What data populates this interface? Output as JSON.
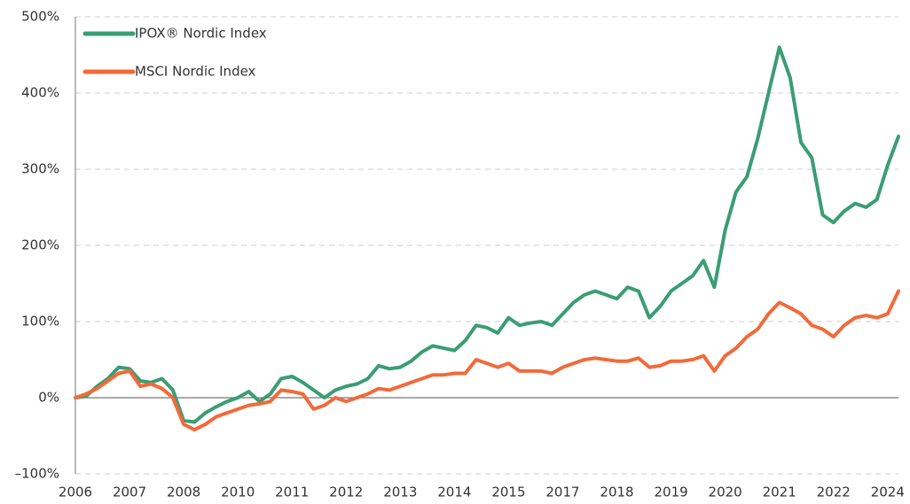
{
  "chart_data": {
    "type": "line",
    "categories": [
      "2006",
      null,
      null,
      null,
      null,
      "2007",
      null,
      null,
      null,
      null,
      "2008",
      null,
      null,
      null,
      null,
      "2010",
      null,
      null,
      null,
      null,
      "2011",
      null,
      null,
      null,
      null,
      "2012",
      null,
      null,
      null,
      null,
      "2013",
      null,
      null,
      null,
      null,
      "2014",
      null,
      null,
      null,
      null,
      "2015",
      null,
      null,
      null,
      null,
      "2017",
      null,
      null,
      null,
      null,
      "2018",
      null,
      null,
      null,
      null,
      "2019",
      null,
      null,
      null,
      null,
      "2020",
      null,
      null,
      null,
      null,
      "2021",
      null,
      null,
      null,
      null,
      "2022",
      null,
      null,
      null,
      null,
      "2024",
      null
    ],
    "series": [
      {
        "name": "IPOX® Nordic Index",
        "color": "#3a9d74",
        "values": [
          0,
          2,
          15,
          25,
          40,
          38,
          22,
          20,
          25,
          10,
          -30,
          -32,
          -20,
          -12,
          -5,
          0,
          8,
          -5,
          5,
          25,
          28,
          20,
          10,
          0,
          10,
          15,
          18,
          25,
          42,
          38,
          40,
          48,
          60,
          68,
          65,
          62,
          75,
          95,
          92,
          85,
          105,
          95,
          98,
          100,
          95,
          110,
          125,
          135,
          140,
          135,
          130,
          145,
          140,
          105,
          120,
          140,
          150,
          160,
          180,
          145,
          220,
          270,
          290,
          340,
          400,
          460,
          420,
          335,
          315,
          240,
          230,
          245,
          255,
          250,
          260,
          305,
          343
        ]
      },
      {
        "name": "MSCI Nordic Index",
        "color": "#f26a3a",
        "values": [
          0,
          5,
          12,
          22,
          32,
          35,
          15,
          18,
          12,
          0,
          -35,
          -42,
          -35,
          -25,
          -20,
          -15,
          -10,
          -8,
          -5,
          10,
          8,
          5,
          -15,
          -10,
          0,
          -5,
          0,
          5,
          12,
          10,
          15,
          20,
          25,
          30,
          30,
          32,
          32,
          50,
          45,
          40,
          45,
          35,
          35,
          35,
          32,
          40,
          45,
          50,
          52,
          50,
          48,
          48,
          52,
          40,
          42,
          48,
          48,
          50,
          55,
          35,
          55,
          65,
          80,
          90,
          110,
          125,
          118,
          110,
          95,
          90,
          80,
          95,
          105,
          108,
          105,
          110,
          140
        ]
      }
    ],
    "ylim": [
      -100,
      500
    ],
    "yticks": [
      {
        "value": -100,
        "label": "–100%"
      },
      {
        "value": 0,
        "label": "0%"
      },
      {
        "value": 100,
        "label": "100%"
      },
      {
        "value": 200,
        "label": "200%"
      },
      {
        "value": 300,
        "label": "300%"
      },
      {
        "value": 400,
        "label": "400%"
      },
      {
        "value": 500,
        "label": "500%"
      }
    ],
    "grid": true,
    "legend": "upper left"
  }
}
